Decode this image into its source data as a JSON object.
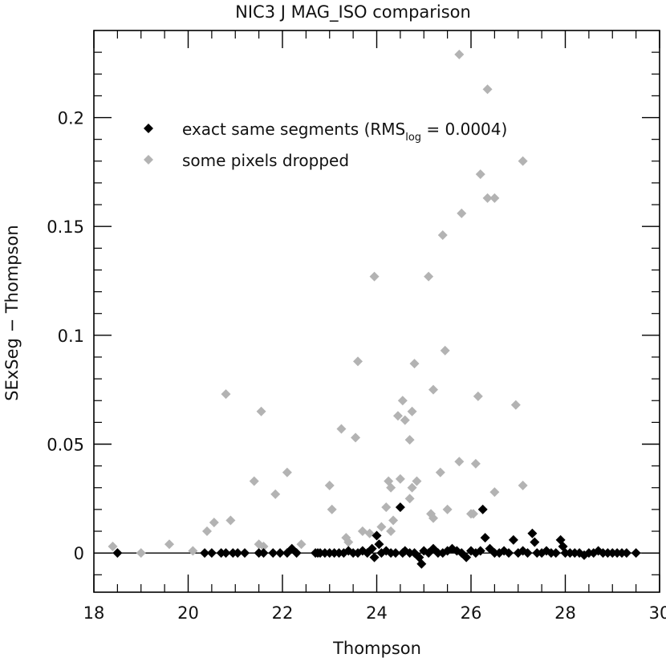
{
  "chart_data": {
    "type": "scatter",
    "title": "NIC3 J MAG_ISO comparison",
    "xlabel": "Thompson",
    "ylabel": "SExSeg − Thompson",
    "xlim": [
      18,
      30
    ],
    "ylim": [
      -0.018,
      0.24
    ],
    "xticks": [
      18,
      20,
      22,
      24,
      26,
      28,
      30
    ],
    "xtick_labels": [
      "18",
      "20",
      "22",
      "24",
      "26",
      "28",
      "30"
    ],
    "yticks": [
      0,
      0.05,
      0.1,
      0.15,
      0.2
    ],
    "ytick_labels": [
      "0",
      "0.05",
      "0.1",
      "0.15",
      "0.2"
    ],
    "grid": false,
    "zero_line": true,
    "legend": {
      "position": "top-left"
    },
    "colors": {
      "exact": "#000000",
      "dropped": "#b3b3b3",
      "axis": "#000000"
    },
    "series": [
      {
        "name": "exact same segments (RMS",
        "name_sub": "log",
        "name_suffix": " = 0.0004)",
        "color": "#000000",
        "points": [
          [
            18.5,
            0
          ],
          [
            20.35,
            0
          ],
          [
            20.5,
            0
          ],
          [
            20.7,
            0
          ],
          [
            20.8,
            0
          ],
          [
            20.95,
            0
          ],
          [
            21.05,
            0
          ],
          [
            21.2,
            0
          ],
          [
            21.5,
            0
          ],
          [
            21.6,
            0
          ],
          [
            21.8,
            0
          ],
          [
            21.95,
            0
          ],
          [
            22.1,
            0
          ],
          [
            22.2,
            0.002
          ],
          [
            22.3,
            0
          ],
          [
            22.7,
            0
          ],
          [
            22.75,
            0
          ],
          [
            22.8,
            0
          ],
          [
            22.9,
            0
          ],
          [
            23.0,
            0
          ],
          [
            23.1,
            0
          ],
          [
            23.2,
            0
          ],
          [
            23.3,
            0
          ],
          [
            23.4,
            0.001
          ],
          [
            23.5,
            0
          ],
          [
            23.6,
            0
          ],
          [
            23.7,
            0.001
          ],
          [
            23.8,
            0
          ],
          [
            23.9,
            0.002
          ],
          [
            23.95,
            -0.002
          ],
          [
            24.0,
            0.008
          ],
          [
            24.05,
            0.004
          ],
          [
            24.1,
            0
          ],
          [
            24.2,
            0.001
          ],
          [
            24.3,
            0
          ],
          [
            24.4,
            0
          ],
          [
            24.5,
            0.021
          ],
          [
            24.55,
            0
          ],
          [
            24.6,
            0.001
          ],
          [
            24.7,
            0
          ],
          [
            24.8,
            0
          ],
          [
            24.9,
            -0.002
          ],
          [
            24.95,
            -0.005
          ],
          [
            25.0,
            0.001
          ],
          [
            25.1,
            0
          ],
          [
            25.2,
            0.002
          ],
          [
            25.3,
            0
          ],
          [
            25.4,
            0
          ],
          [
            25.5,
            0.001
          ],
          [
            25.6,
            0.002
          ],
          [
            25.7,
            0.001
          ],
          [
            25.8,
            0
          ],
          [
            25.9,
            -0.002
          ],
          [
            26.0,
            0.001
          ],
          [
            26.1,
            0
          ],
          [
            26.2,
            0.001
          ],
          [
            26.25,
            0.02
          ],
          [
            26.3,
            0.007
          ],
          [
            26.4,
            0.002
          ],
          [
            26.5,
            0
          ],
          [
            26.6,
            0
          ],
          [
            26.7,
            0.001
          ],
          [
            26.8,
            0
          ],
          [
            26.9,
            0.006
          ],
          [
            27.0,
            0
          ],
          [
            27.1,
            0.001
          ],
          [
            27.2,
            0
          ],
          [
            27.3,
            0.009
          ],
          [
            27.35,
            0.005
          ],
          [
            27.4,
            0
          ],
          [
            27.5,
            0
          ],
          [
            27.6,
            0.001
          ],
          [
            27.7,
            0
          ],
          [
            27.8,
            0
          ],
          [
            27.9,
            0.006
          ],
          [
            27.95,
            0.003
          ],
          [
            28.0,
            0
          ],
          [
            28.1,
            0
          ],
          [
            28.2,
            0
          ],
          [
            28.3,
            0
          ],
          [
            28.4,
            -0.001
          ],
          [
            28.5,
            0
          ],
          [
            28.6,
            0
          ],
          [
            28.7,
            0.001
          ],
          [
            28.8,
            0
          ],
          [
            28.9,
            0
          ],
          [
            29.0,
            0
          ],
          [
            29.1,
            0
          ],
          [
            29.2,
            0
          ],
          [
            29.3,
            0
          ],
          [
            29.5,
            0
          ]
        ]
      },
      {
        "name": "some pixels dropped",
        "color": "#b3b3b3",
        "points": [
          [
            18.4,
            0.003
          ],
          [
            19.0,
            0
          ],
          [
            19.6,
            0.004
          ],
          [
            20.1,
            0.001
          ],
          [
            20.4,
            0.01
          ],
          [
            20.55,
            0.014
          ],
          [
            20.8,
            0.073
          ],
          [
            20.9,
            0.015
          ],
          [
            21.4,
            0.033
          ],
          [
            21.55,
            0.065
          ],
          [
            21.5,
            0.004
          ],
          [
            21.6,
            0.003
          ],
          [
            21.85,
            0.027
          ],
          [
            22.1,
            0.037
          ],
          [
            22.4,
            0.004
          ],
          [
            23.0,
            0.031
          ],
          [
            23.05,
            0.02
          ],
          [
            23.25,
            0.057
          ],
          [
            23.35,
            0.007
          ],
          [
            23.4,
            0.005
          ],
          [
            23.55,
            0.053
          ],
          [
            23.6,
            0.088
          ],
          [
            23.7,
            0.01
          ],
          [
            23.85,
            0.009
          ],
          [
            23.95,
            0.127
          ],
          [
            24.1,
            0.012
          ],
          [
            24.2,
            0.021
          ],
          [
            24.25,
            0.033
          ],
          [
            24.3,
            0.03
          ],
          [
            24.3,
            0.01
          ],
          [
            24.35,
            0.015
          ],
          [
            24.45,
            0.063
          ],
          [
            24.5,
            0.034
          ],
          [
            24.55,
            0.07
          ],
          [
            24.6,
            0.061
          ],
          [
            24.7,
            0.052
          ],
          [
            24.75,
            0.065
          ],
          [
            24.75,
            0.03
          ],
          [
            24.8,
            0.087
          ],
          [
            24.85,
            0.033
          ],
          [
            24.7,
            0.025
          ],
          [
            25.1,
            0.127
          ],
          [
            25.2,
            0.075
          ],
          [
            25.15,
            0.018
          ],
          [
            25.2,
            0.016
          ],
          [
            25.35,
            0.037
          ],
          [
            25.4,
            0.146
          ],
          [
            25.45,
            0.093
          ],
          [
            25.5,
            0.02
          ],
          [
            25.75,
            0.042
          ],
          [
            25.75,
            0.229
          ],
          [
            25.8,
            0.156
          ],
          [
            26.0,
            0.018
          ],
          [
            26.05,
            0.018
          ],
          [
            26.1,
            0.041
          ],
          [
            26.15,
            0.072
          ],
          [
            26.2,
            0.174
          ],
          [
            26.35,
            0.213
          ],
          [
            26.35,
            0.163
          ],
          [
            26.5,
            0.163
          ],
          [
            26.5,
            0.028
          ],
          [
            26.95,
            0.068
          ],
          [
            27.1,
            0.031
          ],
          [
            27.1,
            0.18
          ]
        ]
      }
    ]
  }
}
